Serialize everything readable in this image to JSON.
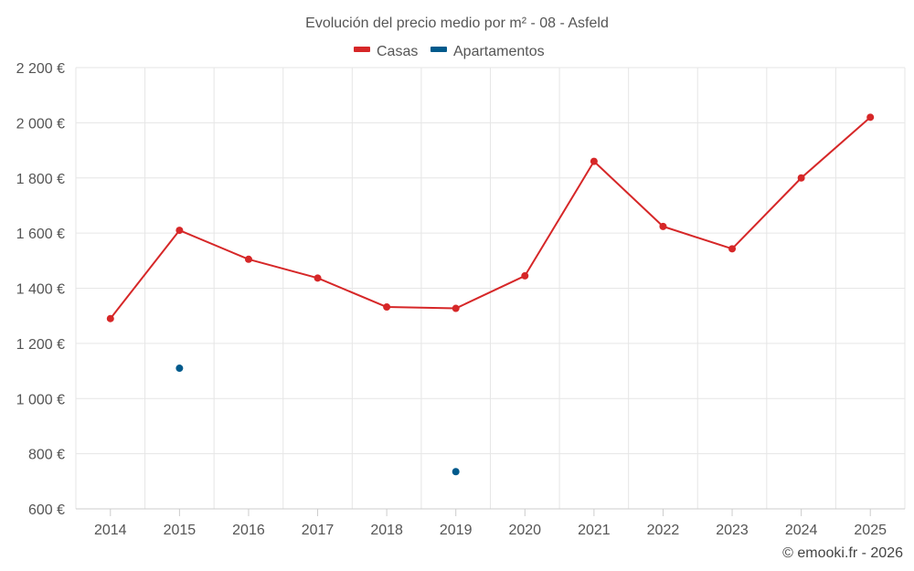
{
  "chart_data": {
    "type": "line",
    "title": "Evolución del precio medio por m² - 08 - Asfeld",
    "categories": [
      "2014",
      "2015",
      "2016",
      "2017",
      "2018",
      "2019",
      "2020",
      "2021",
      "2022",
      "2023",
      "2024",
      "2025"
    ],
    "series": [
      {
        "name": "Casas",
        "color": "#d62728",
        "values": [
          1290,
          1610,
          1505,
          1437,
          1332,
          1327,
          1445,
          1860,
          1624,
          1543,
          1800,
          2020
        ],
        "style": "line-with-markers"
      },
      {
        "name": "Apartamentos",
        "color": "#005a8c",
        "values": [
          null,
          1110,
          null,
          null,
          null,
          735,
          null,
          null,
          null,
          null,
          null,
          null
        ],
        "style": "markers-only"
      }
    ],
    "yticks": [
      600,
      800,
      1000,
      1200,
      1400,
      1600,
      1800,
      2000,
      2200
    ],
    "ytick_labels": [
      "600 €",
      "800 €",
      "1 000 €",
      "1 200 €",
      "1 400 €",
      "1 600 €",
      "1 800 €",
      "2 000 €",
      "2 200 €"
    ],
    "ylim": [
      600,
      2200
    ],
    "xlabel": "",
    "ylabel": "",
    "grid": true,
    "legend_position": "top-center"
  },
  "credit": "© emooki.fr - 2026",
  "colors": {
    "grid": "#e6e6e6",
    "axis": "#cccccc",
    "text": "#555555"
  }
}
